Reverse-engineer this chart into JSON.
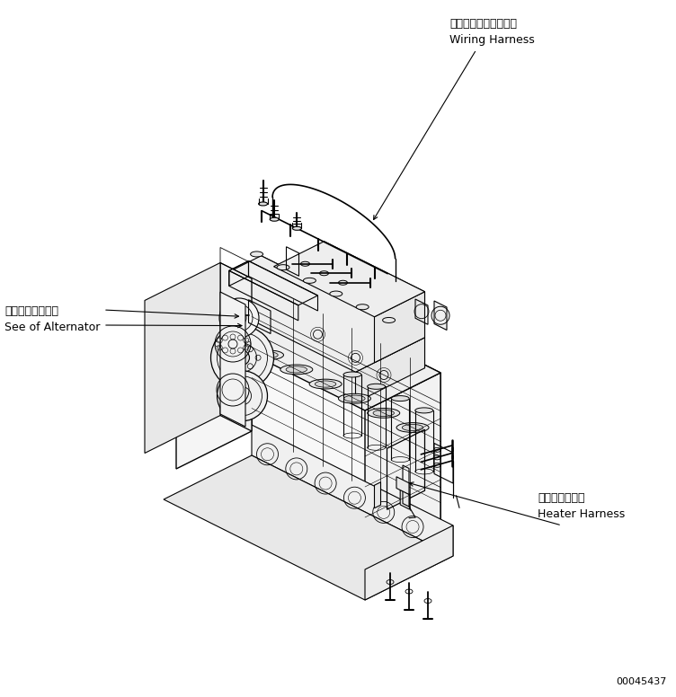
{
  "background_color": "#ffffff",
  "line_color": "#000000",
  "text_color": "#000000",
  "part_number": "00045437",
  "figsize": [
    7.52,
    7.76
  ],
  "dpi": 100,
  "annotations": {
    "wiring_harness_jp": "ワイヤリングハーネス",
    "wiring_harness_en": "Wiring Harness",
    "alternator_jp": "オルタネータ参照",
    "alternator_en": "See of Alternator",
    "heater_jp": "ヒータハーネス",
    "heater_en": "Heater Harness"
  }
}
